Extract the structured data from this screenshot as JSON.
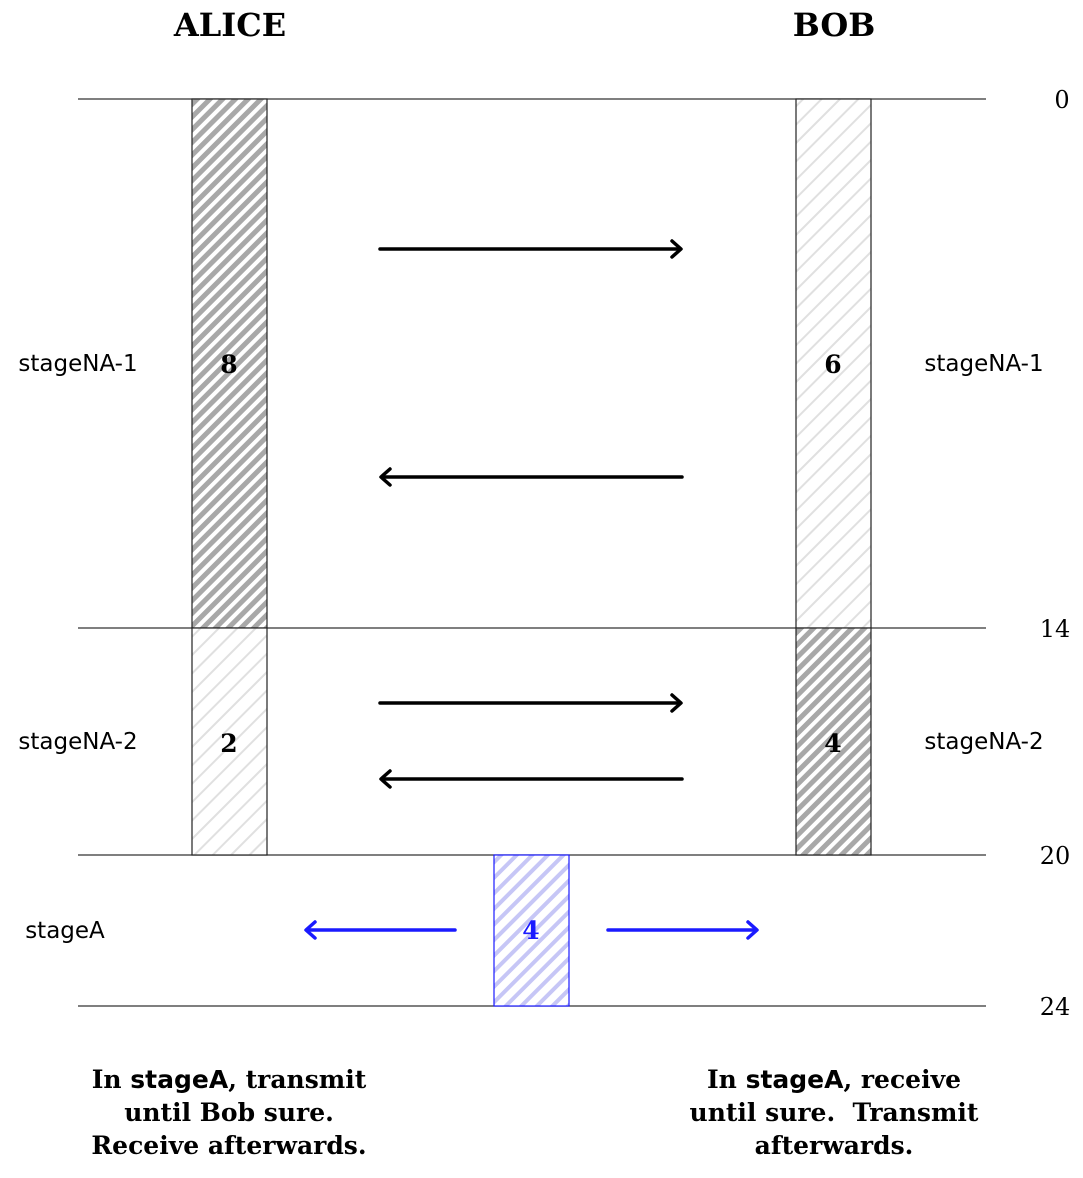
{
  "parties": {
    "left": "ALICE",
    "right": "BOB"
  },
  "time_marks": [
    "0",
    "14",
    "20",
    "24"
  ],
  "stages": {
    "na1": {
      "left_label": "stageNA-1",
      "right_label": "stageNA-1",
      "alice_value": "8",
      "bob_value": "6"
    },
    "na2": {
      "left_label": "stageNA-2",
      "right_label": "stageNA-2",
      "alice_value": "2",
      "bob_value": "4"
    },
    "a": {
      "left_label": "stageA",
      "shared_value": "4"
    }
  },
  "captions": {
    "left": {
      "pre": "In ",
      "kw": "stageA",
      "line1_post": ", transmit",
      "line2": "until Bob sure.",
      "line3": "Receive afterwards."
    },
    "right": {
      "pre": "In ",
      "kw": "stageA",
      "line1_post": ", receive",
      "line2": "until sure.  Transmit",
      "line3": "afterwards."
    }
  },
  "colors": {
    "heavy_hatch": "#a8a8a8",
    "light_hatch": "#e2e2e2",
    "blue": "#1a1aff",
    "blue_hatch": "#c4c4f6"
  }
}
